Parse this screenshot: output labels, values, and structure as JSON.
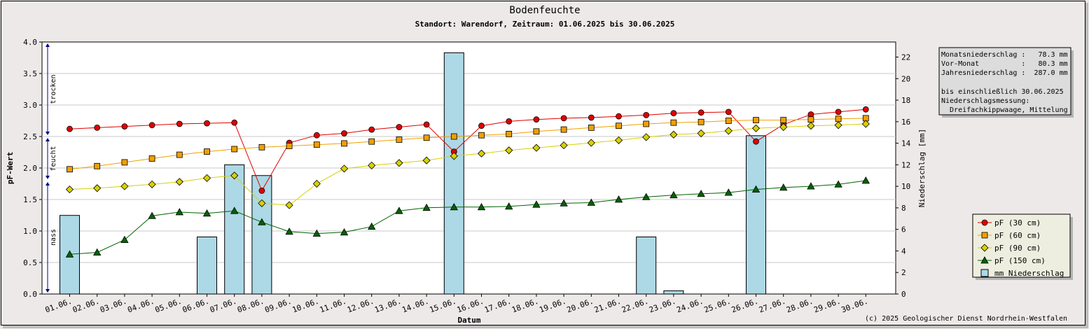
{
  "chart_data": {
    "type": "line",
    "title": "Bodenfeuchte",
    "subtitle": "Standort: Warendorf, Zeitraum: 01.06.2025 bis 30.06.2025",
    "xlabel": "Datum",
    "ylabel": "pF-Wert",
    "y2label": "Niederschlag [mm]",
    "ylim": [
      0,
      4.0
    ],
    "y2lim": [
      0,
      23.4
    ],
    "yticks": [
      "0.0",
      "0.5",
      "1.0",
      "1.5",
      "2.0",
      "2.5",
      "3.0",
      "3.5",
      "4.0"
    ],
    "y2ticks": [
      "0",
      "2",
      "4",
      "6",
      "8",
      "10",
      "12",
      "14",
      "16",
      "18",
      "20",
      "22"
    ],
    "categories": [
      "01.06.",
      "02.06.",
      "03.06.",
      "04.06.",
      "05.06.",
      "06.06.",
      "07.06.",
      "08.06.",
      "09.06.",
      "10.06.",
      "11.06.",
      "12.06.",
      "13.06.",
      "14.06.",
      "15.06.",
      "16.06.",
      "17.06.",
      "18.06.",
      "19.06.",
      "20.06.",
      "21.06.",
      "22.06.",
      "23.06.",
      "24.06.",
      "25.06.",
      "26.06.",
      "27.06.",
      "28.06.",
      "29.06.",
      "30.06."
    ],
    "series": [
      {
        "name": "pF (30 cm)",
        "color": "#e00000",
        "marker": "circle",
        "values": [
          2.62,
          2.64,
          2.66,
          2.68,
          2.7,
          2.71,
          2.72,
          1.64,
          2.4,
          2.52,
          2.55,
          2.61,
          2.65,
          2.69,
          2.26,
          2.67,
          2.74,
          2.77,
          2.79,
          2.8,
          2.82,
          2.84,
          2.87,
          2.88,
          2.89,
          2.42,
          2.69,
          2.85,
          2.89,
          2.93
        ]
      },
      {
        "name": "pF (60 cm)",
        "color": "#f0a000",
        "marker": "square",
        "values": [
          1.98,
          2.03,
          2.09,
          2.15,
          2.21,
          2.26,
          2.3,
          2.33,
          2.35,
          2.37,
          2.39,
          2.42,
          2.45,
          2.48,
          2.5,
          2.52,
          2.54,
          2.58,
          2.61,
          2.64,
          2.67,
          2.7,
          2.72,
          2.73,
          2.75,
          2.76,
          2.76,
          2.77,
          2.78,
          2.79
        ]
      },
      {
        "name": "pF (90 cm)",
        "color": "#d8d000",
        "marker": "diamond",
        "values": [
          1.66,
          1.68,
          1.71,
          1.74,
          1.78,
          1.84,
          1.88,
          1.44,
          1.41,
          1.75,
          1.99,
          2.04,
          2.08,
          2.12,
          2.19,
          2.23,
          2.28,
          2.32,
          2.36,
          2.4,
          2.44,
          2.49,
          2.53,
          2.55,
          2.59,
          2.63,
          2.65,
          2.67,
          2.68,
          2.7
        ]
      },
      {
        "name": "pF (150 cm)",
        "color": "#006400",
        "marker": "triangle",
        "values": [
          0.63,
          0.66,
          0.86,
          1.24,
          1.3,
          1.28,
          1.32,
          1.14,
          0.99,
          0.96,
          0.98,
          1.07,
          1.32,
          1.37,
          1.38,
          1.38,
          1.39,
          1.42,
          1.44,
          1.45,
          1.5,
          1.54,
          1.57,
          1.59,
          1.61,
          1.66,
          1.69,
          1.71,
          1.74,
          1.8
        ]
      },
      {
        "name": "mm  Niederschlag",
        "color": "#add8e6",
        "type": "bar",
        "axis": "y2",
        "values": [
          7.3,
          0,
          0,
          0,
          0,
          5.3,
          12.0,
          11.0,
          0,
          0,
          0,
          0,
          0,
          0,
          22.4,
          0,
          0,
          0,
          0,
          0,
          0,
          5.3,
          0.3,
          0,
          0,
          14.7,
          0,
          0,
          0,
          0
        ]
      }
    ],
    "zones": [
      {
        "label": "trocken",
        "from": 2.5,
        "to": 4.0
      },
      {
        "label": "feucht",
        "from": 1.8,
        "to": 2.5
      },
      {
        "label": "nass",
        "from": 0.0,
        "to": 1.8
      }
    ],
    "legend_position": "right",
    "grid": true
  },
  "info_box": {
    "lines": [
      "Monatsniederschlag :   78.3 mm",
      "Vor-Monat          :   80.3 mm",
      "Jahresniederschlag :  287.0 mm",
      "",
      "bis einschließlich 30.06.2025",
      "Niederschlagsmessung:",
      "  Dreifachkippwaage, Mittelung"
    ]
  },
  "copyright": "(c) 2025 Geologischer Dienst Nordrhein-Westfalen"
}
